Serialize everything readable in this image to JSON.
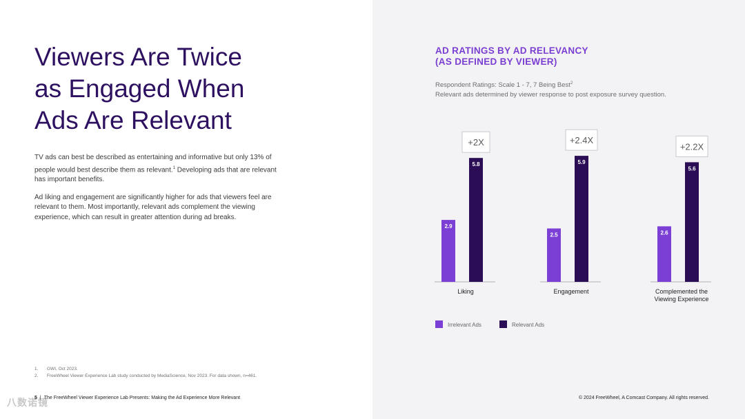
{
  "colors": {
    "headline": "#2d1160",
    "accent": "#7a3fd1",
    "irrelevant": "#7b3fd6",
    "relevant": "#2b0d55"
  },
  "headline": {
    "line1": "Viewers Are Twice",
    "line2": "as Engaged When",
    "line3": "Ads Are Relevant"
  },
  "body": {
    "para1": "TV ads can best be described as entertaining and informative but only 13% of people would best describe them as relevant.",
    "para1_sup": "1",
    "para1_tail": " Developing ads that are relevant has important benefits.",
    "para2": "Ad liking and engagement are significantly higher for ads that viewers feel are relevant to them. Most importantly, relevant ads complement the viewing experience, which can result in greater attention during ad breaks."
  },
  "footnotes": [
    {
      "num": "1.",
      "text": "GWI, Oct 2023."
    },
    {
      "num": "2.",
      "text": "FreeWheel Viewer Experience Lab study conducted by MediaScience, Nov 2023. For data shown, n=461."
    }
  ],
  "footer": {
    "page_number": "5",
    "separator": "|",
    "left_text": "The FreeWheel Viewer Experience Lab Presents: Making the Ad Experience More Relevant",
    "right_text": "© 2024 FreeWheel, A Comcast Company. All rights reserved."
  },
  "watermark": "八数诺镜",
  "chart_data": {
    "type": "bar",
    "title_line1": "AD RATINGS BY AD RELEVANCY",
    "title_line2": "(AS DEFINED BY VIEWER)",
    "subtitle": "Respondent Ratings: Scale 1 - 7, 7 Being Best",
    "subtitle_sup": "2",
    "note": "Relevant ads determined by viewer response to post exposure survey question.",
    "categories": [
      "Liking",
      "Engagement",
      "Complemented the Viewing Experience"
    ],
    "category_lines": [
      [
        "Liking"
      ],
      [
        "Engagement"
      ],
      [
        "Complemented the",
        "Viewing Experience"
      ]
    ],
    "series": [
      {
        "name": "Irrelevant Ads",
        "values": [
          2.9,
          2.5,
          2.6
        ]
      },
      {
        "name": "Relevant Ads",
        "values": [
          5.8,
          5.9,
          5.6
        ]
      }
    ],
    "multipliers": [
      "+2X",
      "+2.4X",
      "+2.2X"
    ],
    "ylim": [
      0,
      7
    ],
    "legend_position": "bottom-left"
  }
}
